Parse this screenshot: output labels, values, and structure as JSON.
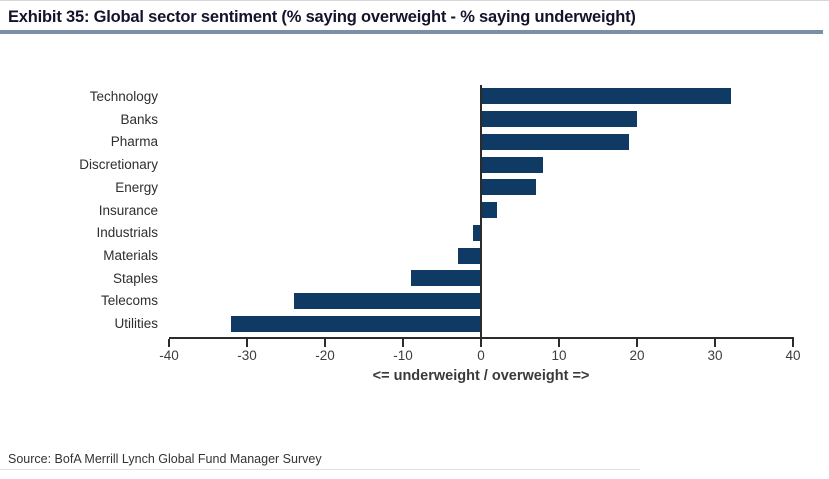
{
  "header": {
    "title": "Exhibit 35: Global sector sentiment (% saying overweight - % saying underweight)"
  },
  "chart_data": {
    "type": "bar",
    "orientation": "horizontal",
    "categories": [
      "Technology",
      "Banks",
      "Pharma",
      "Discretionary",
      "Energy",
      "Insurance",
      "Industrials",
      "Materials",
      "Staples",
      "Telecoms",
      "Utilities"
    ],
    "values": [
      32,
      20,
      19,
      8,
      7,
      2,
      -1,
      -3,
      -9,
      -24,
      -32
    ],
    "title": "Global sector sentiment (% saying overweight - % saying underweight)",
    "xlabel": "<= underweight / overweight =>",
    "ylabel": "",
    "xlim": [
      -40,
      40
    ],
    "xticks": [
      -40,
      -30,
      -20,
      -10,
      0,
      10,
      20,
      30,
      40
    ],
    "grid": false,
    "legend_position": "none",
    "bar_color": "#0f3a63"
  },
  "colors": {
    "bar": "#0f3a63",
    "title_underline": "#7b8fa9",
    "axis": "#2b2b2b"
  },
  "footer": {
    "source": "Source:  BofA Merrill Lynch Global Fund Manager Survey"
  }
}
